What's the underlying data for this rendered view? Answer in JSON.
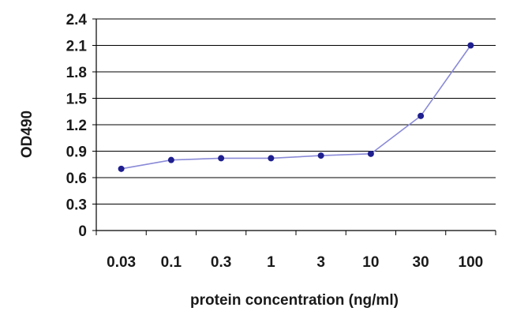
{
  "chart_data": {
    "type": "line",
    "title": "",
    "xlabel": "protein concentration (ng/ml)",
    "ylabel": "OD490",
    "categories": [
      "0.03",
      "0.1",
      "0.3",
      "1",
      "3",
      "10",
      "30",
      "100"
    ],
    "series": [
      {
        "values": [
          0.7,
          0.8,
          0.82,
          0.82,
          0.85,
          0.87,
          1.3,
          2.1
        ]
      }
    ],
    "yticks": [
      "0",
      "0.3",
      "0.6",
      "0.9",
      "1.2",
      "1.5",
      "1.8",
      "2.1",
      "2.4"
    ],
    "ylim": [
      0,
      2.4
    ],
    "grid": true,
    "legend": "none",
    "colors": {
      "line": "#8a8ad8",
      "marker": "#1f1f8f",
      "grid": "#000000"
    }
  }
}
